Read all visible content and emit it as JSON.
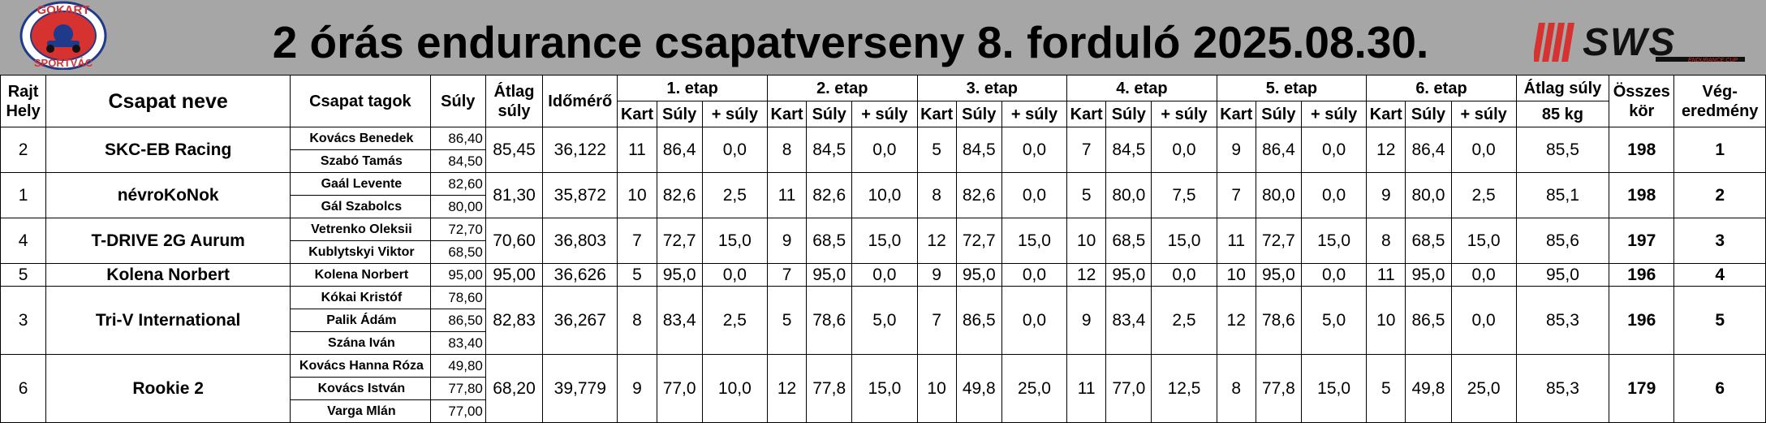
{
  "header": {
    "title": "2 órás endurance csapatverseny 8. forduló 2025.08.30.",
    "logo_left_text_top": "GOKART",
    "logo_left_text_bottom": "SPORTVÁC",
    "logo_right_text": "SWS",
    "logo_right_sub": "ENDURANCE CUP",
    "background_color": "#a6a6a6"
  },
  "table": {
    "headers": {
      "rajt_hely": [
        "Rajt",
        "Hely"
      ],
      "csapat_neve": "Csapat neve",
      "csapat_tagok": "Csapat tagok",
      "suly": "Súly",
      "atlag_suly": [
        "Átlag",
        "súly"
      ],
      "idomero": "Időmérő",
      "etaps": [
        "1. etap",
        "2. etap",
        "3. etap",
        "4. etap",
        "5. etap",
        "6. etap"
      ],
      "etap_sub": [
        "Kart",
        "Súly",
        "+ súly"
      ],
      "atlag_suly_total": "Átlag súly",
      "atlag_suly_target": "85 kg",
      "osszes_kor": [
        "Összes",
        "kör"
      ],
      "vegeredmeny": [
        "Vég-",
        "eredmény"
      ]
    },
    "rows": [
      {
        "rajt": "2",
        "team": "SKC-EB Racing",
        "members": [
          {
            "name": "Kovács Benedek",
            "weight": "86,40"
          },
          {
            "name": "Szabó Tamás",
            "weight": "84,50"
          }
        ],
        "avg_weight": "85,45",
        "qualifying": "36,122",
        "etaps": [
          [
            "11",
            "86,4",
            "0,0"
          ],
          [
            "8",
            "84,5",
            "0,0"
          ],
          [
            "5",
            "84,5",
            "0,0"
          ],
          [
            "7",
            "84,5",
            "0,0"
          ],
          [
            "9",
            "86,4",
            "0,0"
          ],
          [
            "12",
            "86,4",
            "0,0"
          ]
        ],
        "total_avg": "85,5",
        "laps": "198",
        "final": "1"
      },
      {
        "rajt": "1",
        "team": "névroKoNok",
        "members": [
          {
            "name": "Gaál Levente",
            "weight": "82,60"
          },
          {
            "name": "Gál Szabolcs",
            "weight": "80,00"
          }
        ],
        "avg_weight": "81,30",
        "qualifying": "35,872",
        "etaps": [
          [
            "10",
            "82,6",
            "2,5"
          ],
          [
            "11",
            "82,6",
            "10,0"
          ],
          [
            "8",
            "82,6",
            "0,0"
          ],
          [
            "5",
            "80,0",
            "7,5"
          ],
          [
            "7",
            "80,0",
            "0,0"
          ],
          [
            "9",
            "80,0",
            "2,5"
          ]
        ],
        "total_avg": "85,1",
        "laps": "198",
        "final": "2"
      },
      {
        "rajt": "4",
        "team": "T-DRIVE 2G Aurum",
        "members": [
          {
            "name": "Vetrenko Oleksii",
            "weight": "72,70"
          },
          {
            "name": "Kublytskyi Viktor",
            "weight": "68,50"
          }
        ],
        "avg_weight": "70,60",
        "qualifying": "36,803",
        "etaps": [
          [
            "7",
            "72,7",
            "15,0"
          ],
          [
            "9",
            "68,5",
            "15,0"
          ],
          [
            "12",
            "72,7",
            "15,0"
          ],
          [
            "10",
            "68,5",
            "15,0"
          ],
          [
            "11",
            "72,7",
            "15,0"
          ],
          [
            "8",
            "68,5",
            "15,0"
          ]
        ],
        "total_avg": "85,6",
        "laps": "197",
        "final": "3"
      },
      {
        "rajt": "5",
        "team": "Kolena Norbert",
        "members": [
          {
            "name": "Kolena Norbert",
            "weight": "95,00"
          }
        ],
        "avg_weight": "95,00",
        "qualifying": "36,626",
        "etaps": [
          [
            "5",
            "95,0",
            "0,0"
          ],
          [
            "7",
            "95,0",
            "0,0"
          ],
          [
            "9",
            "95,0",
            "0,0"
          ],
          [
            "12",
            "95,0",
            "0,0"
          ],
          [
            "10",
            "95,0",
            "0,0"
          ],
          [
            "11",
            "95,0",
            "0,0"
          ]
        ],
        "total_avg": "95,0",
        "laps": "196",
        "final": "4"
      },
      {
        "rajt": "3",
        "team": "Tri-V International",
        "members": [
          {
            "name": "Kókai Kristóf",
            "weight": "78,60"
          },
          {
            "name": "Palik Ádám",
            "weight": "86,50"
          },
          {
            "name": "Szána Iván",
            "weight": "83,40"
          }
        ],
        "avg_weight": "82,83",
        "qualifying": "36,267",
        "etaps": [
          [
            "8",
            "83,4",
            "2,5"
          ],
          [
            "5",
            "78,6",
            "5,0"
          ],
          [
            "7",
            "86,5",
            "0,0"
          ],
          [
            "9",
            "83,4",
            "2,5"
          ],
          [
            "12",
            "78,6",
            "5,0"
          ],
          [
            "10",
            "86,5",
            "0,0"
          ]
        ],
        "total_avg": "85,3",
        "laps": "196",
        "final": "5"
      },
      {
        "rajt": "6",
        "team": "Rookie 2",
        "members": [
          {
            "name": "Kovács Hanna Róza",
            "weight": "49,80"
          },
          {
            "name": "Kovács István",
            "weight": "77,80"
          },
          {
            "name": "Varga Mlán",
            "weight": "77,00"
          }
        ],
        "avg_weight": "68,20",
        "qualifying": "39,779",
        "etaps": [
          [
            "9",
            "77,0",
            "10,0"
          ],
          [
            "12",
            "77,8",
            "15,0"
          ],
          [
            "10",
            "49,8",
            "25,0"
          ],
          [
            "11",
            "77,0",
            "12,5"
          ],
          [
            "8",
            "77,8",
            "15,0"
          ],
          [
            "5",
            "49,8",
            "25,0"
          ]
        ],
        "total_avg": "85,3",
        "laps": "179",
        "final": "6"
      }
    ]
  }
}
